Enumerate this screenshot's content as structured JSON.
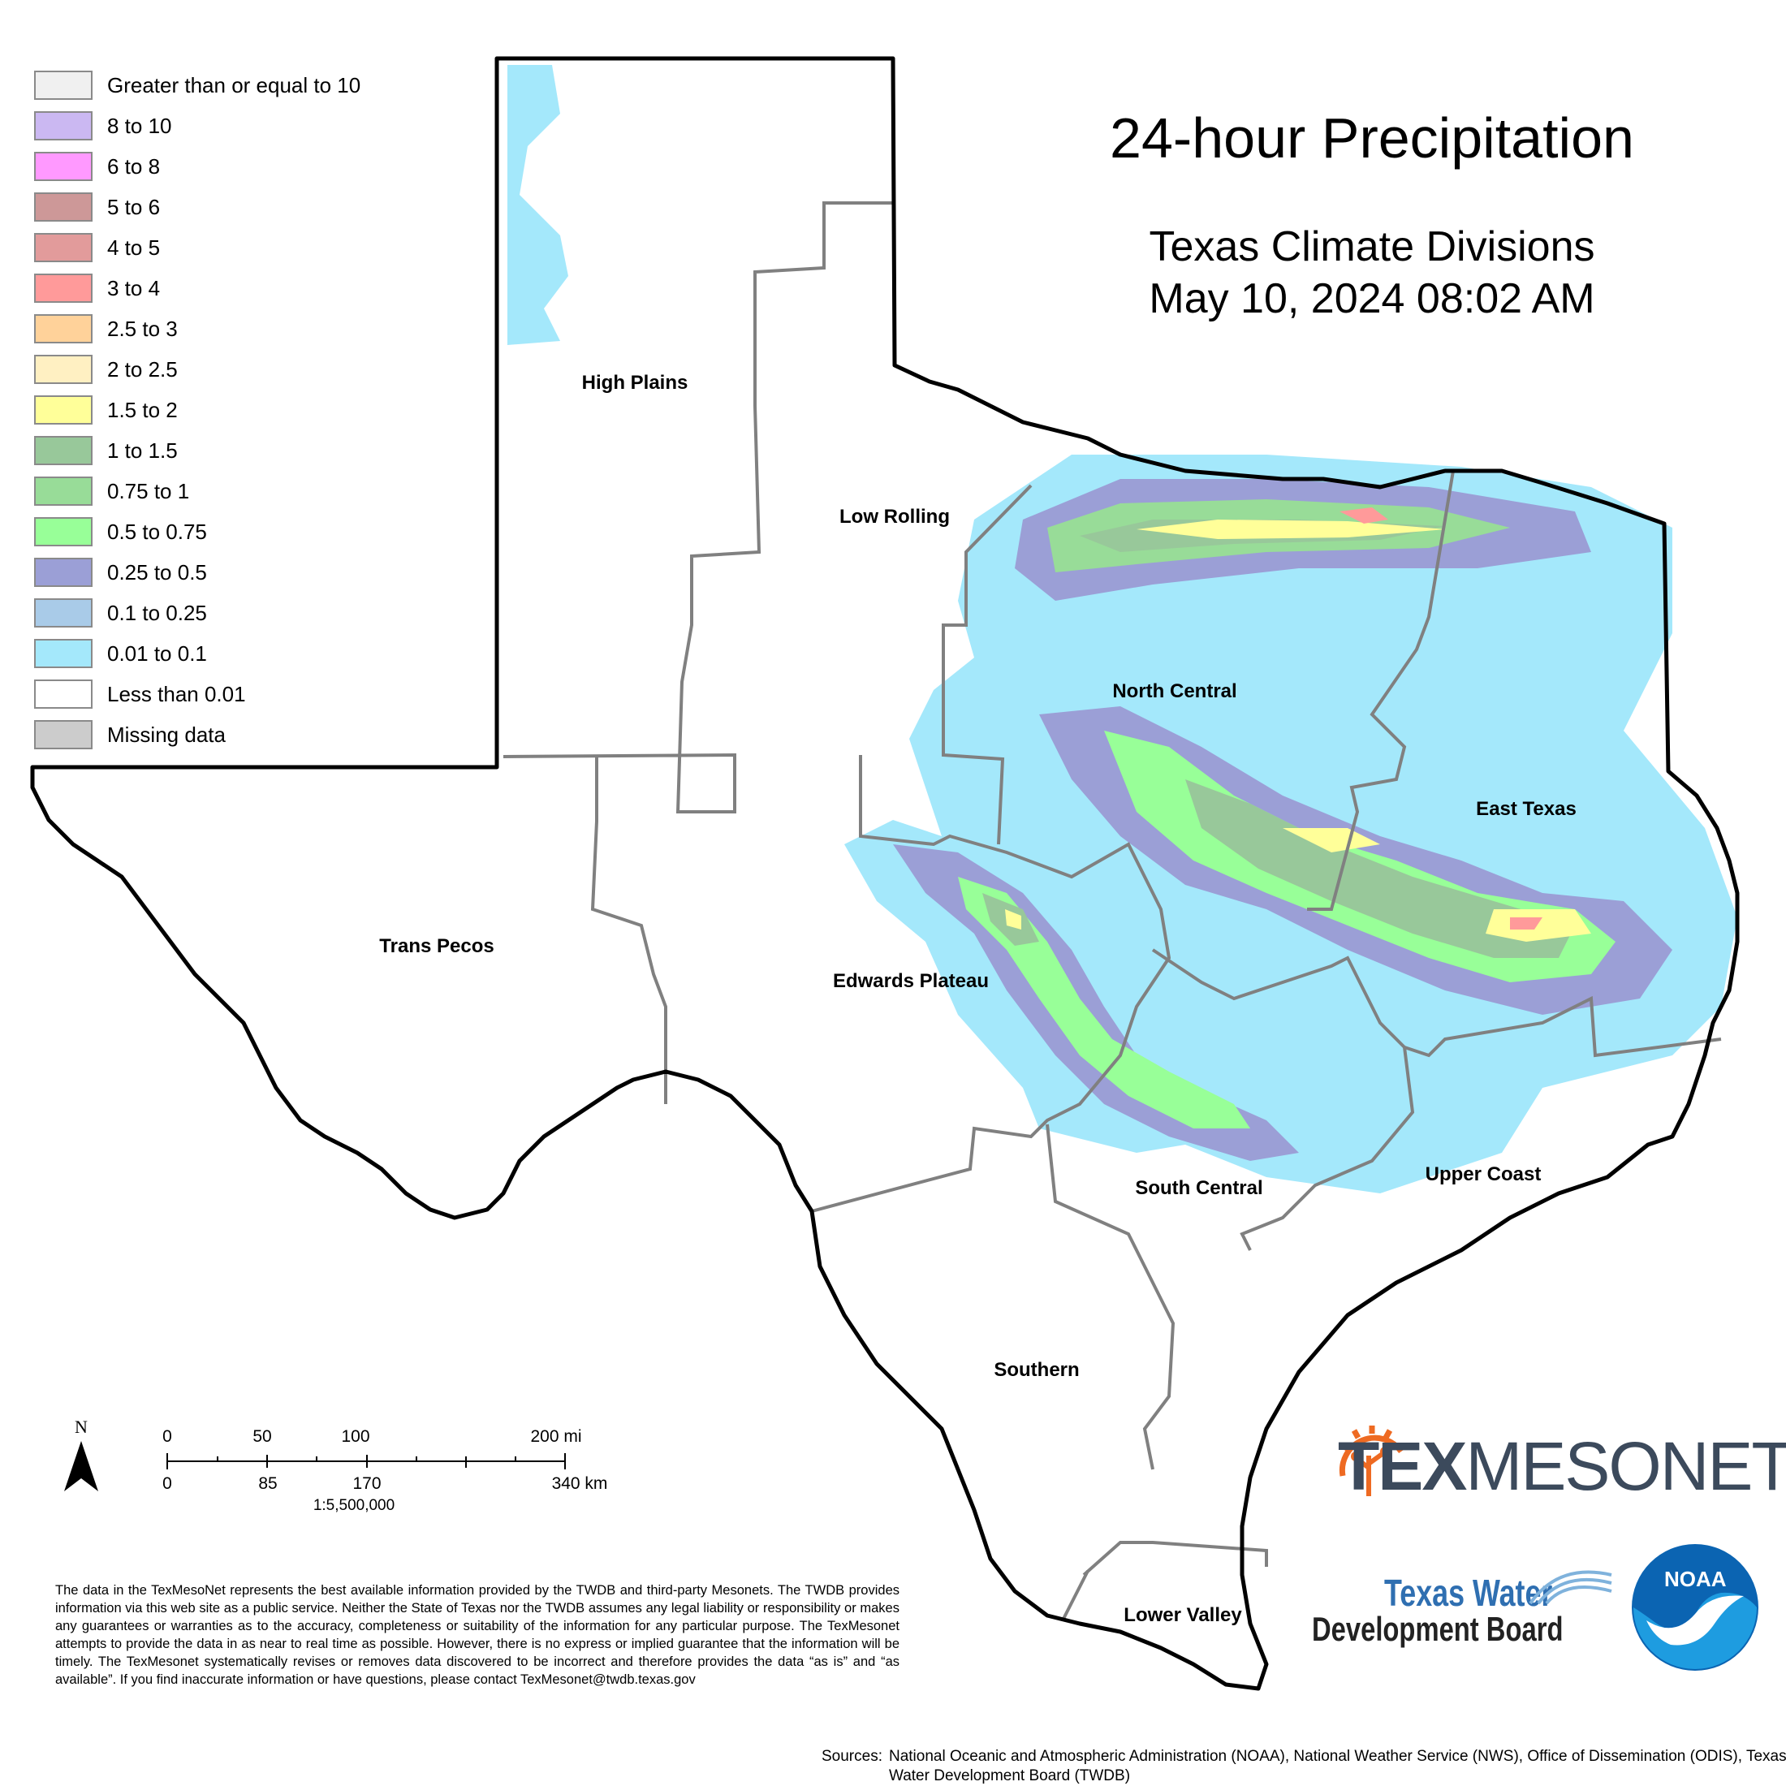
{
  "title": "24-hour Precipitation",
  "subtitle_line1": "Texas Climate Divisions",
  "subtitle_line2": "May 10, 2024 08:02 AM",
  "legend": [
    {
      "label": "Greater than or equal to 10",
      "color": "#f0f0f0"
    },
    {
      "label": "8 to 10",
      "color": "#cbb8f2"
    },
    {
      "label": "6 to 8",
      "color": "#ff99ff"
    },
    {
      "label": "5 to 6",
      "color": "#cd9898"
    },
    {
      "label": "4 to 5",
      "color": "#e29b9b"
    },
    {
      "label": "3 to 4",
      "color": "#ff9a9a"
    },
    {
      "label": "2.5 to 3",
      "color": "#ffd29a"
    },
    {
      "label": "2 to 2.5",
      "color": "#fff0c2"
    },
    {
      "label": "1.5 to 2",
      "color": "#ffff99"
    },
    {
      "label": "1 to 1.5",
      "color": "#98c89a"
    },
    {
      "label": "0.75 to 1",
      "color": "#98dc98"
    },
    {
      "label": "0.5 to 0.75",
      "color": "#98ff98"
    },
    {
      "label": "0.25 to 0.5",
      "color": "#9b9fd6"
    },
    {
      "label": "0.1 to 0.25",
      "color": "#a9cbe8"
    },
    {
      "label": "0.01 to 0.1",
      "color": "#a4e8fb"
    },
    {
      "label": "Less than 0.01",
      "color": "#ffffff"
    },
    {
      "label": "Missing data",
      "color": "#cccccc"
    }
  ],
  "regions": {
    "high_plains": "High Plains",
    "low_rolling": "Low Rolling",
    "north_central": "North Central",
    "east_texas": "East Texas",
    "trans_pecos": "Trans Pecos",
    "edwards_plateau": "Edwards Plateau",
    "south_central": "South Central",
    "upper_coast": "Upper Coast",
    "southern": "Southern",
    "lower_valley": "Lower Valley"
  },
  "north_arrow": "N",
  "scale": {
    "mi_ticks": [
      "0",
      "50",
      "100",
      "200 mi"
    ],
    "km_ticks": [
      "0",
      "85",
      "170",
      "340 km"
    ],
    "ratio": "1:5,500,000"
  },
  "disclaimer": "The data in the TexMesoNet represents the best available information provided by the TWDB and third-party Mesonets. The TWDB provides information via this web site as a public service. Neither the State of Texas nor the TWDB assumes any legal liability or responsibility or makes any guarantees or warranties as to the accuracy, completeness or suitability of the information for any particular purpose. The TexMesonet attempts to provide the data in as near to real time as possible. However, there is no express or implied guarantee that the information will be timely. The TexMesonet systematically revises or removes data discovered to be incorrect and therefore provides the data “as is” and “as available”. If you find inaccurate information or have questions, please contact TexMesonet@twdb.texas.gov",
  "sources_prefix": "Sources:",
  "sources": "National Oceanic and Atmospheric Administration (NOAA), National Weather Service (NWS), Office of Dissemination (ODIS), Texas Water Development Board (TWDB)",
  "logos": {
    "texmesonet_tex": "TEX",
    "texmesonet_mesonet": "MESONET",
    "twdb_line1": "Texas Water",
    "twdb_line2": "Development Board",
    "noaa": "NOAA"
  }
}
